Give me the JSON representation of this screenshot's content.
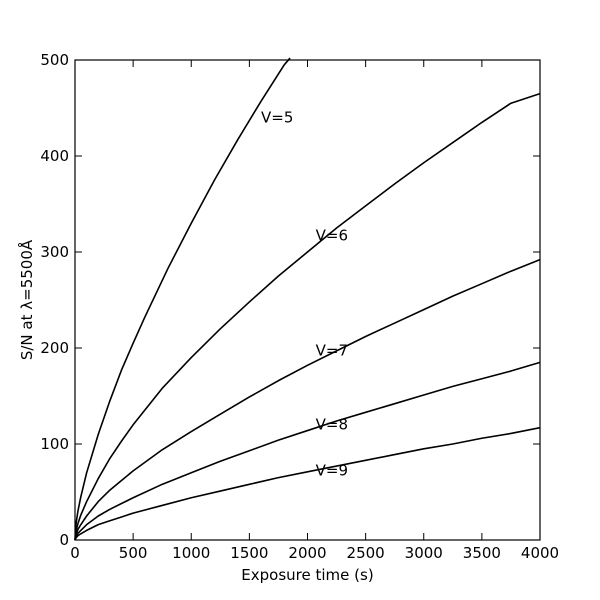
{
  "chart_data": {
    "type": "line",
    "title": "",
    "xlabel": "Exposure time (s)",
    "ylabel": "S/N at λ=5500Å",
    "xlim": [
      0,
      4000
    ],
    "ylim": [
      0,
      500
    ],
    "xticks": [
      "0",
      "500",
      "1000",
      "1500",
      "2000",
      "2500",
      "3000",
      "3500",
      "4000"
    ],
    "yticks": [
      "0",
      "100",
      "200",
      "300",
      "400",
      "500"
    ],
    "grid": false,
    "legend": "none",
    "line_color": "#000000",
    "series": [
      {
        "name": "V=5",
        "label_at": [
          1600,
          435
        ],
        "x": [
          0,
          10,
          25,
          50,
          100,
          200,
          300,
          400,
          500,
          600,
          800,
          1000,
          1200,
          1400,
          1600,
          1800,
          1850
        ],
        "y": [
          0,
          18,
          30,
          45,
          70,
          110,
          145,
          177,
          205,
          232,
          283,
          330,
          375,
          417,
          457,
          495,
          502
        ]
      },
      {
        "name": "V=6",
        "label_at": [
          2070,
          312
        ],
        "x": [
          0,
          10,
          25,
          50,
          100,
          200,
          300,
          400,
          500,
          750,
          1000,
          1250,
          1500,
          1750,
          2000,
          2250,
          2500,
          2750,
          3000,
          3250,
          3500,
          3750,
          4000
        ],
        "y": [
          0,
          10,
          17,
          26,
          40,
          64,
          85,
          103,
          120,
          158,
          190,
          220,
          248,
          275,
          300,
          325,
          348,
          371,
          393,
          414,
          435,
          455,
          465
        ]
      },
      {
        "name": "V=7",
        "label_at": [
          2070,
          192
        ],
        "x": [
          0,
          10,
          25,
          50,
          100,
          200,
          300,
          400,
          500,
          750,
          1000,
          1250,
          1500,
          1750,
          2000,
          2250,
          2500,
          2750,
          3000,
          3250,
          3500,
          3750,
          4000
        ],
        "y": [
          0,
          6,
          11,
          16,
          25,
          40,
          52,
          62,
          72,
          94,
          113,
          131,
          149,
          166,
          182,
          197,
          212,
          226,
          240,
          254,
          267,
          280,
          292
        ]
      },
      {
        "name": "V=8",
        "label_at": [
          2070,
          115
        ],
        "x": [
          0,
          10,
          25,
          50,
          100,
          200,
          300,
          400,
          500,
          750,
          1000,
          1250,
          1500,
          1750,
          2000,
          2250,
          2500,
          2750,
          3000,
          3250,
          3500,
          3750,
          4000
        ],
        "y": [
          0,
          4,
          7,
          10,
          16,
          25,
          32,
          38,
          44,
          58,
          70,
          82,
          93,
          104,
          114,
          124,
          133,
          142,
          151,
          160,
          168,
          176,
          185
        ]
      },
      {
        "name": "V=9",
        "label_at": [
          2070,
          67
        ],
        "x": [
          0,
          10,
          25,
          50,
          100,
          200,
          300,
          400,
          500,
          750,
          1000,
          1250,
          1500,
          1750,
          2000,
          2250,
          2500,
          2750,
          3000,
          3250,
          3500,
          3750,
          4000
        ],
        "y": [
          0,
          2.5,
          4.5,
          6.5,
          10,
          16,
          20,
          24,
          28,
          36,
          44,
          51,
          58,
          65,
          71,
          77,
          83,
          89,
          95,
          100,
          106,
          111,
          117
        ]
      }
    ]
  }
}
